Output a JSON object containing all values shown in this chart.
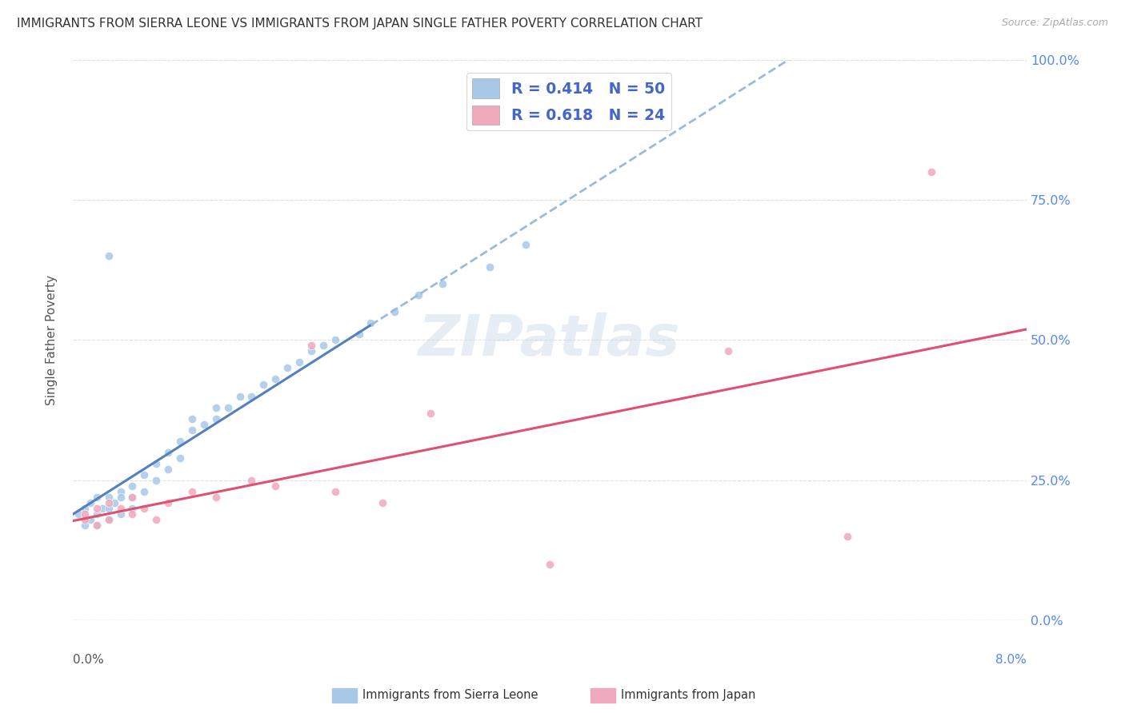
{
  "title": "IMMIGRANTS FROM SIERRA LEONE VS IMMIGRANTS FROM JAPAN SINGLE FATHER POVERTY CORRELATION CHART",
  "source": "Source: ZipAtlas.com",
  "ylabel": "Single Father Poverty",
  "legend_r1": "R = 0.414",
  "legend_n1": "N = 50",
  "legend_r2": "R = 0.618",
  "legend_n2": "N = 24",
  "color_sl": "#a8c8e8",
  "color_jp": "#f0a8bc",
  "line_sl_color": "#5580c0",
  "line_jp_color": "#e05070",
  "line_dashed_color": "#99bbdd",
  "watermark": "ZIPatlas",
  "sl_legend_label": "Immigrants from Sierra Leone",
  "jp_legend_label": "Immigrants from Japan",
  "sierra_leone_x": [
    0.0005,
    0.001,
    0.001,
    0.0015,
    0.0015,
    0.002,
    0.002,
    0.002,
    0.0025,
    0.003,
    0.003,
    0.003,
    0.0035,
    0.004,
    0.004,
    0.004,
    0.005,
    0.005,
    0.005,
    0.006,
    0.006,
    0.007,
    0.007,
    0.008,
    0.008,
    0.009,
    0.009,
    0.01,
    0.01,
    0.011,
    0.012,
    0.012,
    0.013,
    0.014,
    0.015,
    0.016,
    0.017,
    0.018,
    0.019,
    0.02,
    0.021,
    0.022,
    0.024,
    0.025,
    0.027,
    0.029,
    0.031,
    0.035,
    0.038,
    0.003
  ],
  "sierra_leone_y": [
    0.19,
    0.2,
    0.17,
    0.18,
    0.21,
    0.17,
    0.19,
    0.22,
    0.2,
    0.18,
    0.2,
    0.22,
    0.21,
    0.19,
    0.23,
    0.22,
    0.2,
    0.22,
    0.24,
    0.23,
    0.26,
    0.25,
    0.28,
    0.27,
    0.3,
    0.29,
    0.32,
    0.34,
    0.36,
    0.35,
    0.36,
    0.38,
    0.38,
    0.4,
    0.4,
    0.42,
    0.43,
    0.45,
    0.46,
    0.48,
    0.49,
    0.5,
    0.51,
    0.53,
    0.55,
    0.58,
    0.6,
    0.63,
    0.67,
    0.65
  ],
  "japan_x": [
    0.001,
    0.001,
    0.002,
    0.002,
    0.003,
    0.003,
    0.004,
    0.005,
    0.005,
    0.006,
    0.007,
    0.008,
    0.01,
    0.012,
    0.015,
    0.017,
    0.02,
    0.022,
    0.026,
    0.03,
    0.04,
    0.055,
    0.065,
    0.072
  ],
  "japan_y": [
    0.18,
    0.19,
    0.17,
    0.2,
    0.21,
    0.18,
    0.2,
    0.19,
    0.22,
    0.2,
    0.18,
    0.21,
    0.23,
    0.22,
    0.25,
    0.24,
    0.49,
    0.23,
    0.21,
    0.37,
    0.1,
    0.48,
    0.15,
    0.8
  ],
  "xlim": [
    0.0,
    0.08
  ],
  "ylim": [
    0.0,
    1.0
  ],
  "ytick_vals": [
    0.0,
    0.25,
    0.5,
    0.75,
    1.0
  ],
  "ytick_labels": [
    "0.0%",
    "25.0%",
    "50.0%",
    "75.0%",
    "100.0%"
  ],
  "background": "#ffffff",
  "grid_color": "#e0e0e0"
}
